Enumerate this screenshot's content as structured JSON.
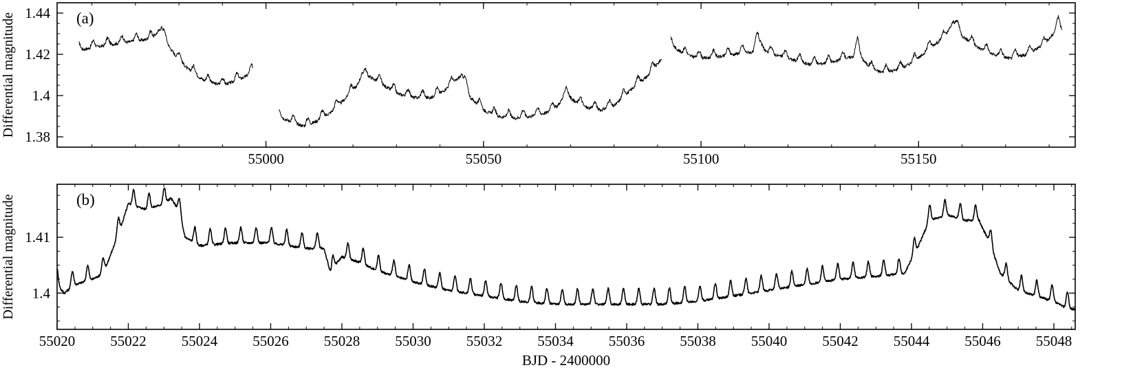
{
  "figure": {
    "background": "#ffffff",
    "line_color": "#000000"
  },
  "chart_data": [
    {
      "type": "line",
      "panel_label": "(a)",
      "xlabel": "",
      "ylabel": "Differential magnitude",
      "xlim": [
        54952,
        55186
      ],
      "ylim": [
        1.445,
        1.375
      ],
      "y_inverted": true,
      "xticks": [
        55000,
        55050,
        55100,
        55150
      ],
      "yticks": [
        1.38,
        1.4,
        1.42,
        1.44
      ],
      "ytick_labels": [
        "1.38",
        "1.4",
        "1.42",
        "1.44"
      ],
      "grid": false,
      "dip_period_days": 3.3,
      "series": [
        {
          "segments": [
            {
              "x": [
                54957,
                54965,
                54972,
                54974,
                54976,
                54977,
                54979,
                54982,
                54986,
                54990,
                54993,
                54996,
                54997
              ],
              "y": [
                1.422,
                1.425,
                1.427,
                1.428,
                1.433,
                1.426,
                1.42,
                1.413,
                1.407,
                1.405,
                1.407,
                1.41,
                1.412
              ]
            },
            {
              "x": [
                55003,
                55006,
                55009,
                55012,
                55015,
                55018,
                55021,
                55022,
                55024,
                55027,
                55030,
                55034,
                55038,
                55040,
                55043,
                55045,
                55047,
                55050,
                55053,
                55057,
                55061,
                55065,
                55067,
                55068,
                55069,
                55071,
                55074,
                55077,
                55080,
                55083,
                55085,
                55088,
                55091
              ],
              "y": [
                1.39,
                1.387,
                1.385,
                1.388,
                1.392,
                1.398,
                1.405,
                1.41,
                1.409,
                1.405,
                1.401,
                1.399,
                1.399,
                1.401,
                1.406,
                1.41,
                1.399,
                1.393,
                1.39,
                1.389,
                1.39,
                1.392,
                1.395,
                1.398,
                1.401,
                1.397,
                1.394,
                1.393,
                1.395,
                1.401,
                1.405,
                1.41,
                1.418
              ]
            },
            {
              "x": [
                55093,
                55096,
                55100,
                55105,
                55110,
                55112,
                55113,
                55115,
                55120,
                55125,
                55130,
                55135,
                55136,
                55137,
                55139,
                55142,
                55146,
                55150,
                55153,
                55156,
                55157,
                55158,
                55160,
                55163,
                55167,
                55171,
                55175,
                55179,
                55181,
                55182,
                55183
              ],
              "y": [
                1.425,
                1.42,
                1.418,
                1.419,
                1.421,
                1.421,
                1.428,
                1.421,
                1.418,
                1.415,
                1.416,
                1.419,
                1.425,
                1.418,
                1.413,
                1.411,
                1.413,
                1.418,
                1.424,
                1.428,
                1.432,
                1.436,
                1.429,
                1.424,
                1.42,
                1.418,
                1.42,
                1.425,
                1.43,
                1.435,
                1.432
              ]
            }
          ]
        }
      ]
    },
    {
      "type": "line",
      "panel_label": "(b)",
      "xlabel": "BJD - 2400000",
      "ylabel": "Differential magnitude",
      "xlim": [
        55020,
        55048.6
      ],
      "ylim": [
        1.4195,
        1.3935
      ],
      "y_inverted": true,
      "xticks": [
        55020,
        55022,
        55024,
        55026,
        55028,
        55030,
        55032,
        55034,
        55036,
        55038,
        55040,
        55042,
        55044,
        55046,
        55048
      ],
      "yticks": [
        1.4,
        1.41
      ],
      "ytick_labels": [
        "1.4",
        "1.41"
      ],
      "grid": false,
      "dip_period_days": 0.43,
      "series": [
        {
          "segments": [
            {
              "x": [
                55020,
                55020.2,
                55020.5,
                55021,
                55021.3,
                55021.6,
                55021.8,
                55022,
                55022.5,
                55023,
                55023.2,
                55023.4,
                55023.6,
                55024,
                55025,
                55026,
                55027,
                55027.5,
                55027.7,
                55027.8,
                55028,
                55028.5,
                55029,
                55030,
                55031,
                55032,
                55033,
                55034,
                55035,
                55036,
                55037,
                55038,
                55039,
                55040,
                55041,
                55042,
                55043,
                55043.8,
                55044.2,
                55044.5,
                55045,
                55045.5,
                55045.9,
                55046.2,
                55046.5,
                55047,
                55047.5,
                55048,
                55048.3,
                55048.6
              ],
              "y": [
                1.4015,
                1.4,
                1.4015,
                1.4025,
                1.4035,
                1.4085,
                1.412,
                1.416,
                1.415,
                1.416,
                1.417,
                1.415,
                1.41,
                1.4085,
                1.409,
                1.409,
                1.408,
                1.408,
                1.403,
                1.405,
                1.4065,
                1.4055,
                1.404,
                1.402,
                1.4005,
                1.3995,
                1.3985,
                1.398,
                1.398,
                1.398,
                1.398,
                1.3985,
                1.3995,
                1.4005,
                1.4015,
                1.4025,
                1.403,
                1.4035,
                1.4085,
                1.413,
                1.414,
                1.413,
                1.413,
                1.409,
                1.4035,
                1.4005,
                1.3995,
                1.3985,
                1.3975,
                1.397
              ]
            }
          ]
        }
      ]
    }
  ]
}
